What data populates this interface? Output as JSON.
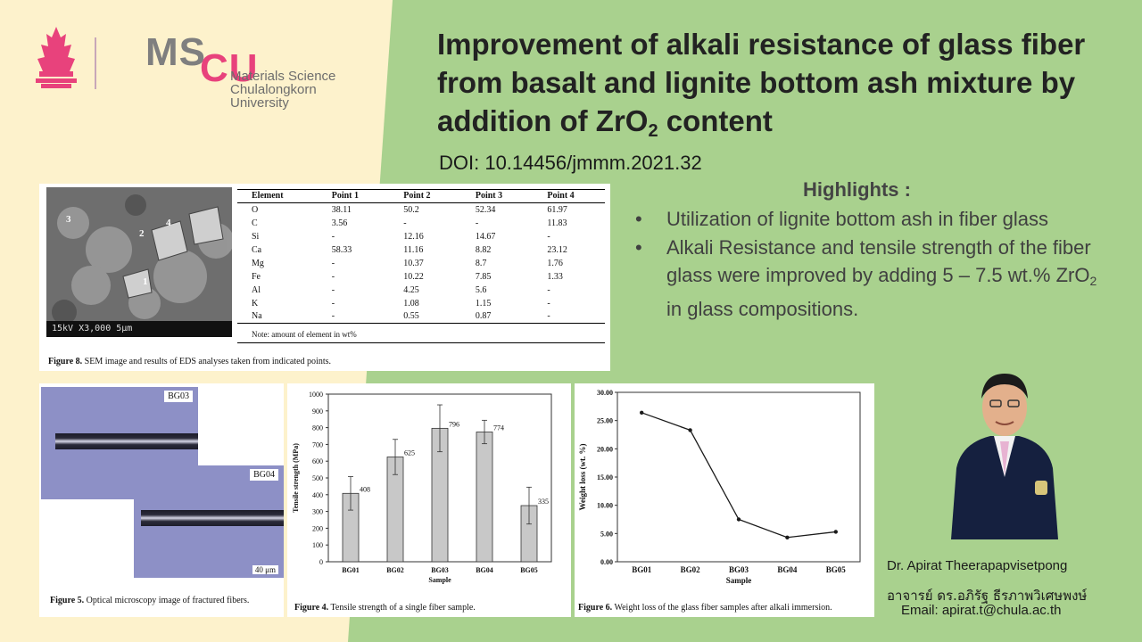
{
  "logo": {
    "ms": "MS",
    "cu": "CU",
    "sub1": "Materials Science",
    "sub2": "Chulalongkorn University"
  },
  "title": {
    "line": "Improvement of alkali resistance of glass fiber from basalt and lignite bottom ash mixture by addition of ZrO",
    "sub": "2",
    "tail": " content"
  },
  "doi": "DOI: 10.14456/jmmm.2021.32",
  "highlights": {
    "heading": "Highlights :",
    "bullet": "•",
    "item1": "Utilization of lignite bottom ash in fiber glass",
    "item2_a": "Alkali Resistance and tensile strength of the fiber glass were improved by adding 5 – 7.5 wt.% ZrO",
    "item2_sub": "2",
    "item2_b": " in glass compositions."
  },
  "figure8": {
    "sem_scale": "15kV    X3,000    5μm",
    "point_labels": [
      "3",
      "2",
      "4",
      "1"
    ],
    "headers": [
      "Element",
      "Point 1",
      "Point 2",
      "Point 3",
      "Point 4"
    ],
    "rows": [
      [
        "O",
        "38.11",
        "50.2",
        "52.34",
        "61.97"
      ],
      [
        "C",
        "3.56",
        "-",
        "-",
        "11.83"
      ],
      [
        "Si",
        "-",
        "12.16",
        "14.67",
        "-"
      ],
      [
        "Ca",
        "58.33",
        "11.16",
        "8.82",
        "23.12"
      ],
      [
        "Mg",
        "-",
        "10.37",
        "8.7",
        "1.76"
      ],
      [
        "Fe",
        "-",
        "10.22",
        "7.85",
        "1.33"
      ],
      [
        "Al",
        "-",
        "4.25",
        "5.6",
        "-"
      ],
      [
        "K",
        "-",
        "1.08",
        "1.15",
        "-"
      ],
      [
        "Na",
        "-",
        "0.55",
        "0.87",
        "-"
      ]
    ],
    "note": "Note: amount of element in wt%",
    "caption_label": "Figure 8.",
    "caption_text": "SEM image and results of EDS analyses taken from indicated points."
  },
  "figure5": {
    "tag1": "BG03",
    "tag2": "BG04",
    "scale": "40 μm",
    "caption_label": "Figure 5.",
    "caption_text": "Optical microscopy image of fractured fibers."
  },
  "figure4": {
    "caption_label": "Figure 4.",
    "caption_text": "Tensile strength of a single fiber sample."
  },
  "figure6": {
    "caption_label": "Figure 6.",
    "caption_text": "Weight loss of the glass fiber samples after alkali immersion."
  },
  "chart_data": [
    {
      "type": "bar",
      "categories": [
        "BG01",
        "BG02",
        "BG03",
        "BG04",
        "BG05"
      ],
      "values": [
        408,
        625,
        796,
        774,
        335
      ],
      "errors": [
        100,
        105,
        140,
        70,
        110
      ],
      "data_labels": [
        "408",
        "625",
        "796",
        "774",
        "335"
      ],
      "xlabel": "Sample",
      "ylabel": "Tensile strength (MPa)",
      "ylim": [
        0,
        1000
      ],
      "yticks": [
        "0",
        "100",
        "200",
        "300",
        "400",
        "500",
        "600",
        "700",
        "800",
        "900",
        "1000"
      ],
      "bar_color": "#c8c8c8"
    },
    {
      "type": "line",
      "categories": [
        "BG01",
        "BG02",
        "BG03",
        "BG04",
        "BG05"
      ],
      "values": [
        26.4,
        23.3,
        7.5,
        4.3,
        5.3
      ],
      "xlabel": "Sample",
      "ylabel": "Weight loss (wt. %)",
      "ylim": [
        0,
        30
      ],
      "yticks": [
        "0.00",
        "5.00",
        "10.00",
        "15.00",
        "20.00",
        "25.00",
        "30.00"
      ],
      "line_color": "#1a1a1a"
    }
  ],
  "author": {
    "name_en": "Dr. Apirat Theerapapvisetpong",
    "name_th": "อาจารย์ ดร.อภิรัฐ ธีรภาพวิเศษพงษ์",
    "email": "Email: apirat.t@chula.ac.th"
  }
}
